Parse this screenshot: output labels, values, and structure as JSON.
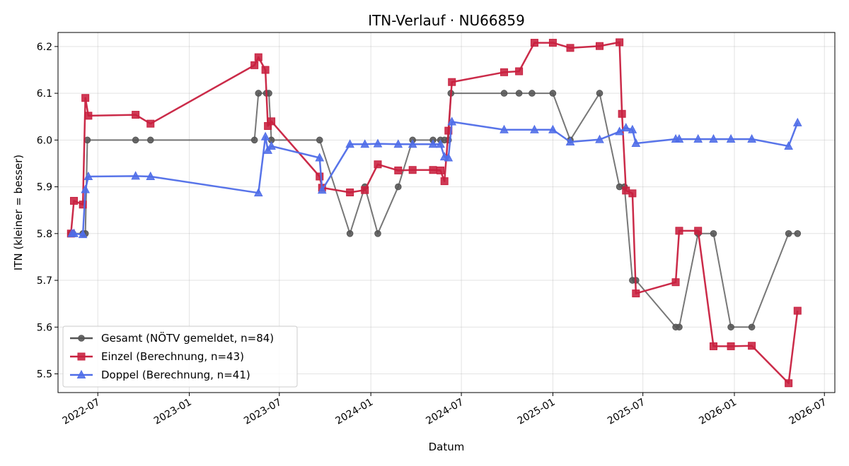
{
  "chart_data": {
    "type": "line",
    "title": "ITN-Verlauf · NU66859",
    "xlabel": "Datum",
    "ylabel": "ITN  (kleiner = besser)",
    "x_axis_type": "date",
    "xlim": [
      "2022-04-12",
      "2026-07-22"
    ],
    "ylim": [
      5.46,
      6.23
    ],
    "grid": true,
    "legend_position": "lower-left",
    "x_ticks": [
      {
        "date": "2022-07-01",
        "label": "2022-07"
      },
      {
        "date": "2023-01-01",
        "label": "2023-01"
      },
      {
        "date": "2023-07-01",
        "label": "2023-07"
      },
      {
        "date": "2024-01-01",
        "label": "2024-01"
      },
      {
        "date": "2024-07-01",
        "label": "2024-07"
      },
      {
        "date": "2025-01-01",
        "label": "2025-01"
      },
      {
        "date": "2025-07-01",
        "label": "2025-07"
      },
      {
        "date": "2026-01-01",
        "label": "2026-01"
      },
      {
        "date": "2026-07-01",
        "label": "2026-07"
      }
    ],
    "y_ticks": [
      {
        "value": 5.5,
        "label": "5.5"
      },
      {
        "value": 5.6,
        "label": "5.6"
      },
      {
        "value": 5.7,
        "label": "5.7"
      },
      {
        "value": 5.8,
        "label": "5.8"
      },
      {
        "value": 5.9,
        "label": "5.9"
      },
      {
        "value": 6.0,
        "label": "6.0"
      },
      {
        "value": 6.1,
        "label": "6.1"
      },
      {
        "value": 6.2,
        "label": "6.2"
      }
    ],
    "series": [
      {
        "name": "Gesamt (NÖTV gemeldet, n=84)",
        "color": "#555555",
        "marker": "circle",
        "points": [
          {
            "x": "2022-05-08",
            "y": 5.8
          },
          {
            "x": "2022-05-12",
            "y": 5.8
          },
          {
            "x": "2022-06-01",
            "y": 5.8
          },
          {
            "x": "2022-06-06",
            "y": 5.8
          },
          {
            "x": "2022-06-10",
            "y": 6.0
          },
          {
            "x": "2022-09-15",
            "y": 6.0
          },
          {
            "x": "2022-10-15",
            "y": 6.0
          },
          {
            "x": "2023-05-12",
            "y": 6.0
          },
          {
            "x": "2023-05-20",
            "y": 6.1
          },
          {
            "x": "2023-06-05",
            "y": 6.1
          },
          {
            "x": "2023-06-10",
            "y": 6.1
          },
          {
            "x": "2023-06-15",
            "y": 6.0
          },
          {
            "x": "2023-09-20",
            "y": 6.0
          },
          {
            "x": "2023-11-20",
            "y": 5.8
          },
          {
            "x": "2023-12-20",
            "y": 5.9
          },
          {
            "x": "2024-01-15",
            "y": 5.8
          },
          {
            "x": "2024-02-25",
            "y": 5.9
          },
          {
            "x": "2024-03-25",
            "y": 6.0
          },
          {
            "x": "2024-05-05",
            "y": 6.0
          },
          {
            "x": "2024-05-20",
            "y": 6.0
          },
          {
            "x": "2024-05-28",
            "y": 6.0
          },
          {
            "x": "2024-06-05",
            "y": 6.0
          },
          {
            "x": "2024-06-10",
            "y": 6.1
          },
          {
            "x": "2024-09-25",
            "y": 6.1
          },
          {
            "x": "2024-10-25",
            "y": 6.1
          },
          {
            "x": "2024-11-20",
            "y": 6.1
          },
          {
            "x": "2025-01-01",
            "y": 6.1
          },
          {
            "x": "2025-02-05",
            "y": 6.0
          },
          {
            "x": "2025-04-05",
            "y": 6.1
          },
          {
            "x": "2025-05-15",
            "y": 5.9
          },
          {
            "x": "2025-05-25",
            "y": 5.9
          },
          {
            "x": "2025-06-10",
            "y": 5.7
          },
          {
            "x": "2025-06-17",
            "y": 5.7
          },
          {
            "x": "2025-09-05",
            "y": 5.6
          },
          {
            "x": "2025-09-12",
            "y": 5.6
          },
          {
            "x": "2025-10-20",
            "y": 5.8
          },
          {
            "x": "2025-11-20",
            "y": 5.8
          },
          {
            "x": "2025-12-25",
            "y": 5.6
          },
          {
            "x": "2026-02-05",
            "y": 5.6
          },
          {
            "x": "2026-04-20",
            "y": 5.8
          },
          {
            "x": "2026-05-08",
            "y": 5.8
          }
        ]
      },
      {
        "name": "Einzel (Berechnung, n=43)",
        "color": "#c8203f",
        "marker": "square",
        "points": [
          {
            "x": "2022-05-08",
            "y": 5.8
          },
          {
            "x": "2022-05-14",
            "y": 5.87
          },
          {
            "x": "2022-06-01",
            "y": 5.862
          },
          {
            "x": "2022-06-06",
            "y": 6.09
          },
          {
            "x": "2022-06-12",
            "y": 6.052
          },
          {
            "x": "2022-09-15",
            "y": 6.054
          },
          {
            "x": "2022-10-15",
            "y": 6.035
          },
          {
            "x": "2023-05-12",
            "y": 6.16
          },
          {
            "x": "2023-05-20",
            "y": 6.177
          },
          {
            "x": "2023-06-03",
            "y": 6.15
          },
          {
            "x": "2023-06-08",
            "y": 6.03
          },
          {
            "x": "2023-06-15",
            "y": 6.04
          },
          {
            "x": "2023-09-20",
            "y": 5.922
          },
          {
            "x": "2023-09-25",
            "y": 5.898
          },
          {
            "x": "2023-11-20",
            "y": 5.888
          },
          {
            "x": "2023-12-20",
            "y": 5.893
          },
          {
            "x": "2024-01-15",
            "y": 5.948
          },
          {
            "x": "2024-02-25",
            "y": 5.935
          },
          {
            "x": "2024-03-25",
            "y": 5.936
          },
          {
            "x": "2024-05-05",
            "y": 5.936
          },
          {
            "x": "2024-05-20",
            "y": 5.935
          },
          {
            "x": "2024-05-28",
            "y": 5.912
          },
          {
            "x": "2024-06-05",
            "y": 6.02
          },
          {
            "x": "2024-06-12",
            "y": 6.124
          },
          {
            "x": "2024-09-25",
            "y": 6.145
          },
          {
            "x": "2024-10-25",
            "y": 6.147
          },
          {
            "x": "2024-11-25",
            "y": 6.208
          },
          {
            "x": "2025-01-01",
            "y": 6.208
          },
          {
            "x": "2025-02-05",
            "y": 6.197
          },
          {
            "x": "2025-04-05",
            "y": 6.201
          },
          {
            "x": "2025-05-15",
            "y": 6.209
          },
          {
            "x": "2025-05-20",
            "y": 6.056
          },
          {
            "x": "2025-05-28",
            "y": 5.892
          },
          {
            "x": "2025-06-10",
            "y": 5.886
          },
          {
            "x": "2025-06-17",
            "y": 5.672
          },
          {
            "x": "2025-09-05",
            "y": 5.696
          },
          {
            "x": "2025-09-12",
            "y": 5.806
          },
          {
            "x": "2025-10-20",
            "y": 5.806
          },
          {
            "x": "2025-11-20",
            "y": 5.559
          },
          {
            "x": "2025-12-25",
            "y": 5.559
          },
          {
            "x": "2026-02-05",
            "y": 5.56
          },
          {
            "x": "2026-04-20",
            "y": 5.48
          },
          {
            "x": "2026-05-08",
            "y": 5.635
          }
        ]
      },
      {
        "name": "Doppel (Berechnung, n=41)",
        "color": "#4f6de8",
        "marker": "triangle",
        "points": [
          {
            "x": "2022-05-10",
            "y": 5.8
          },
          {
            "x": "2022-05-14",
            "y": 5.8
          },
          {
            "x": "2022-06-01",
            "y": 5.798
          },
          {
            "x": "2022-06-06",
            "y": 5.894
          },
          {
            "x": "2022-06-12",
            "y": 5.922
          },
          {
            "x": "2022-09-15",
            "y": 5.923
          },
          {
            "x": "2022-10-15",
            "y": 5.922
          },
          {
            "x": "2023-05-20",
            "y": 5.887
          },
          {
            "x": "2023-06-03",
            "y": 6.007
          },
          {
            "x": "2023-06-08",
            "y": 5.978
          },
          {
            "x": "2023-06-15",
            "y": 5.987
          },
          {
            "x": "2023-09-20",
            "y": 5.962
          },
          {
            "x": "2023-09-25",
            "y": 5.893
          },
          {
            "x": "2023-11-20",
            "y": 5.991
          },
          {
            "x": "2023-12-20",
            "y": 5.991
          },
          {
            "x": "2024-01-15",
            "y": 5.992
          },
          {
            "x": "2024-02-25",
            "y": 5.991
          },
          {
            "x": "2024-03-25",
            "y": 5.991
          },
          {
            "x": "2024-05-05",
            "y": 5.991
          },
          {
            "x": "2024-05-20",
            "y": 5.991
          },
          {
            "x": "2024-05-28",
            "y": 5.964
          },
          {
            "x": "2024-06-05",
            "y": 5.962
          },
          {
            "x": "2024-06-12",
            "y": 6.039
          },
          {
            "x": "2024-09-25",
            "y": 6.022
          },
          {
            "x": "2024-11-25",
            "y": 6.022
          },
          {
            "x": "2025-01-01",
            "y": 6.022
          },
          {
            "x": "2025-02-05",
            "y": 5.996
          },
          {
            "x": "2025-04-05",
            "y": 6.001
          },
          {
            "x": "2025-05-15",
            "y": 6.018
          },
          {
            "x": "2025-05-28",
            "y": 6.026
          },
          {
            "x": "2025-06-10",
            "y": 6.022
          },
          {
            "x": "2025-06-17",
            "y": 5.993
          },
          {
            "x": "2025-09-05",
            "y": 6.002
          },
          {
            "x": "2025-09-12",
            "y": 6.002
          },
          {
            "x": "2025-10-20",
            "y": 6.002
          },
          {
            "x": "2025-11-20",
            "y": 6.002
          },
          {
            "x": "2025-12-25",
            "y": 6.002
          },
          {
            "x": "2026-02-05",
            "y": 6.002
          },
          {
            "x": "2026-04-20",
            "y": 5.987
          },
          {
            "x": "2026-05-08",
            "y": 6.037
          }
        ]
      }
    ]
  }
}
